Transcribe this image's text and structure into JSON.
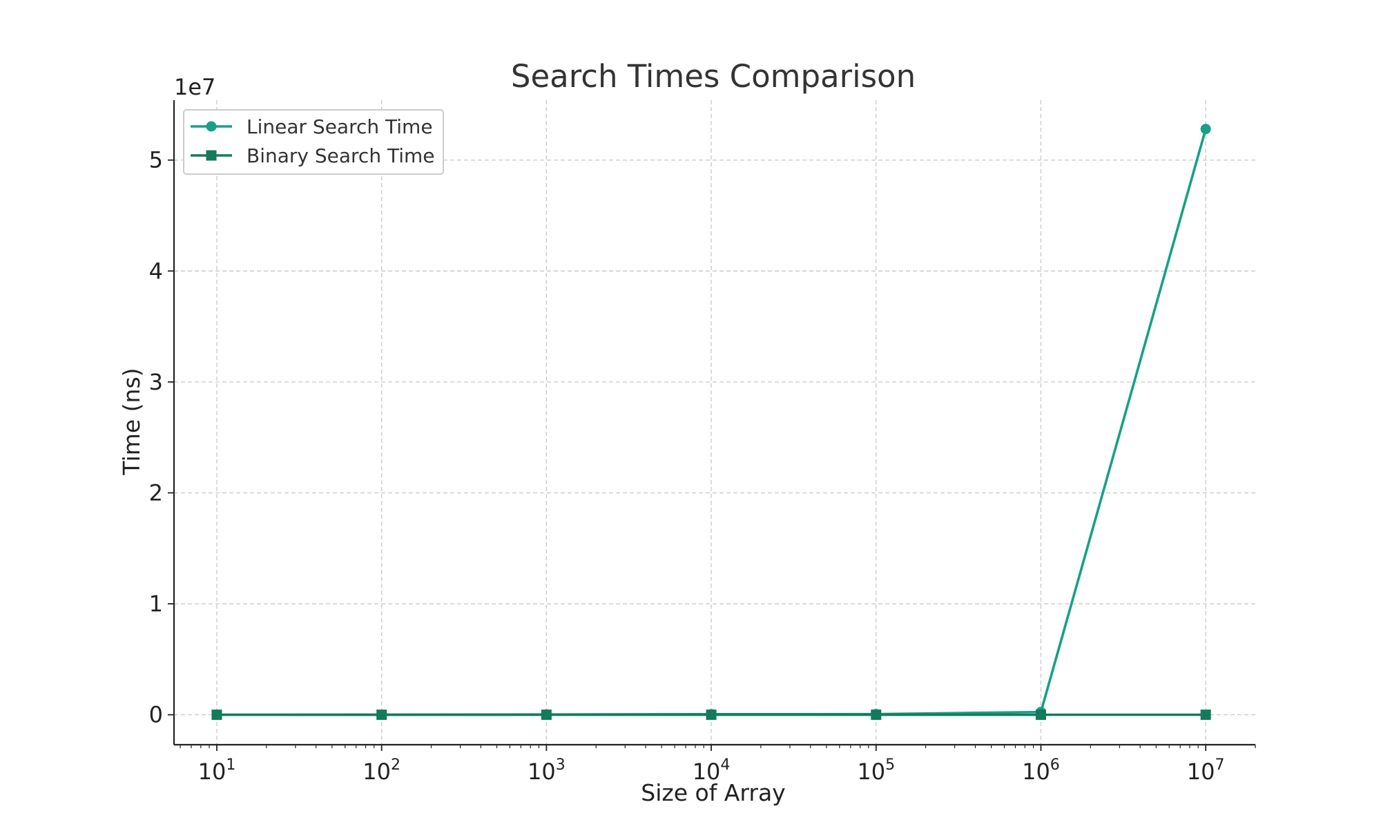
{
  "chart_data": {
    "type": "line",
    "title": "Search Times Comparison",
    "xlabel": "Size of Array",
    "ylabel": "Time (ns)",
    "y_offset_label": "1e7",
    "x_scale": "log",
    "xlim": [
      5.5,
      20000000
    ],
    "ylim": [
      -2700000,
      55400000
    ],
    "grid": true,
    "legend_position": "top-left",
    "x": [
      10,
      100,
      1000,
      10000,
      100000,
      1000000,
      10000000
    ],
    "x_ticks": [
      {
        "value": 10,
        "base": "10",
        "exp": "1"
      },
      {
        "value": 100,
        "base": "10",
        "exp": "2"
      },
      {
        "value": 1000,
        "base": "10",
        "exp": "3"
      },
      {
        "value": 10000,
        "base": "10",
        "exp": "4"
      },
      {
        "value": 100000,
        "base": "10",
        "exp": "5"
      },
      {
        "value": 1000000,
        "base": "10",
        "exp": "6"
      },
      {
        "value": 10000000,
        "base": "10",
        "exp": "7"
      }
    ],
    "y_ticks": [
      {
        "value": 0,
        "label": "0"
      },
      {
        "value": 10000000,
        "label": "1"
      },
      {
        "value": 20000000,
        "label": "2"
      },
      {
        "value": 30000000,
        "label": "3"
      },
      {
        "value": 40000000,
        "label": "4"
      },
      {
        "value": 50000000,
        "label": "5"
      }
    ],
    "series": [
      {
        "name": "Linear Search Time",
        "marker": "circle",
        "color": "#17a085",
        "values": [
          300,
          2500,
          25000,
          50000,
          60000,
          250000,
          52800000
        ]
      },
      {
        "name": "Binary Search Time",
        "marker": "square",
        "color": "#147a5c",
        "values": [
          400,
          500,
          600,
          700,
          900,
          1200,
          1500
        ]
      }
    ]
  }
}
